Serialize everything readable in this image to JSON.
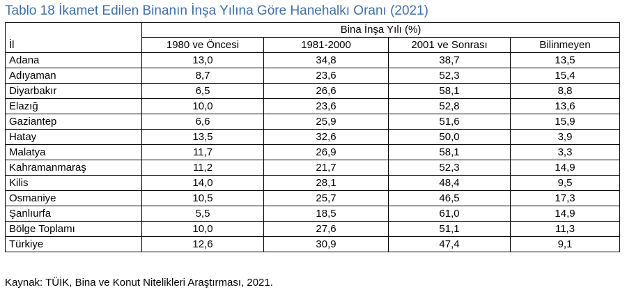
{
  "title": "Tablo 18 İkamet Edilen Binanın İnşa Yılına Göre Hanehalkı Oranı (2021)",
  "table": {
    "group_header": "Bina İnşa Yılı (%)",
    "row_header": "İl",
    "columns": [
      "1980 ve Öncesi",
      "1981-2000",
      "2001 ve Sonrası",
      "Bilinmeyen"
    ],
    "rows": [
      {
        "il": "Adana",
        "v1": "13,0",
        "v2": "34,8",
        "v3": "38,7",
        "v4": "13,5"
      },
      {
        "il": "Adıyaman",
        "v1": "8,7",
        "v2": "23,6",
        "v3": "52,3",
        "v4": "15,4"
      },
      {
        "il": "Diyarbakır",
        "v1": "6,5",
        "v2": "26,6",
        "v3": "58,1",
        "v4": "8,8"
      },
      {
        "il": "Elazığ",
        "v1": "10,0",
        "v2": "23,6",
        "v3": "52,8",
        "v4": "13,6"
      },
      {
        "il": "Gaziantep",
        "v1": "6,6",
        "v2": "25,9",
        "v3": "51,6",
        "v4": "15,9"
      },
      {
        "il": "Hatay",
        "v1": "13,5",
        "v2": "32,6",
        "v3": "50,0",
        "v4": "3,9"
      },
      {
        "il": "Malatya",
        "v1": "11,7",
        "v2": "26,9",
        "v3": "58,1",
        "v4": "3,3"
      },
      {
        "il": "Kahramanmaraş",
        "v1": "11,2",
        "v2": "21,7",
        "v3": "52,3",
        "v4": "14,9"
      },
      {
        "il": "Kilis",
        "v1": "14,0",
        "v2": "28,1",
        "v3": "48,4",
        "v4": "9,5"
      },
      {
        "il": "Osmaniye",
        "v1": "10,5",
        "v2": "25,7",
        "v3": "46,5",
        "v4": "17,3"
      },
      {
        "il": "Şanlıurfa",
        "v1": "5,5",
        "v2": "18,5",
        "v3": "61,0",
        "v4": "14,9"
      },
      {
        "il": "Bölge Toplamı",
        "v1": "10,0",
        "v2": "27,6",
        "v3": "51,1",
        "v4": "11,3"
      },
      {
        "il": "Türkiye",
        "v1": "12,6",
        "v2": "30,9",
        "v3": "47,4",
        "v4": "9,1"
      }
    ]
  },
  "source": "Kaynak: TÜİK, Bina ve Konut Nitelikleri Araştırması, 2021.",
  "colors": {
    "title": "#3f6fa6",
    "text": "#000000",
    "border": "#000000"
  }
}
